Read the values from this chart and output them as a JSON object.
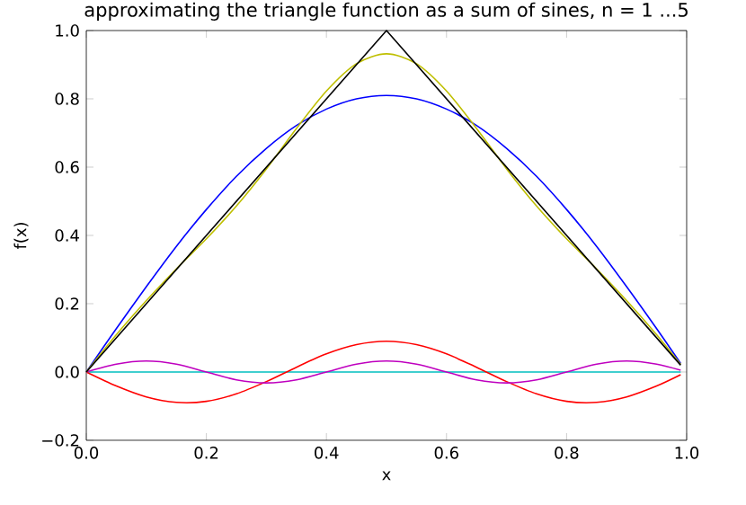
{
  "chart_data": {
    "type": "line",
    "title": "approximating the triangle function as a sum of sines, n = 1 ...5",
    "xlabel": "x",
    "ylabel": "f(x)",
    "x": [
      0,
      0.05,
      0.1,
      0.15,
      0.2,
      0.25,
      0.3,
      0.35,
      0.4,
      0.45,
      0.5,
      0.55,
      0.6,
      0.65,
      0.7,
      0.75,
      0.8,
      0.85,
      0.9,
      0.95,
      0.99
    ],
    "series": [
      {
        "color": "#0000ff",
        "values": [
          0,
          0.127,
          0.25,
          0.368,
          0.476,
          0.573,
          0.655,
          0.722,
          0.77,
          0.8,
          0.81,
          0.8,
          0.77,
          0.722,
          0.655,
          0.573,
          0.476,
          0.368,
          0.25,
          0.127,
          0.025
        ]
      },
      {
        "color": "#00bfbf",
        "values": [
          0,
          0,
          0,
          0,
          0,
          0,
          0,
          0,
          0,
          0,
          0,
          0,
          0,
          0,
          0,
          0,
          0,
          0,
          0,
          0,
          0
        ]
      },
      {
        "color": "#ff0000",
        "values": [
          0,
          -0.041,
          -0.073,
          -0.089,
          -0.086,
          -0.064,
          -0.028,
          0.014,
          0.053,
          0.08,
          0.09,
          0.08,
          0.053,
          0.014,
          -0.028,
          -0.064,
          -0.086,
          -0.089,
          -0.073,
          -0.041,
          -0.008
        ]
      },
      {
        "color": "#bf00bf",
        "values": [
          0,
          0.023,
          0.032,
          0.023,
          0,
          -0.023,
          -0.032,
          -0.023,
          0,
          0.023,
          0.032,
          0.023,
          0,
          -0.023,
          -0.032,
          -0.023,
          0,
          0.023,
          0.032,
          0.023,
          0.005
        ]
      },
      {
        "color": "#bfbf00",
        "values": [
          0,
          0.109,
          0.209,
          0.302,
          0.39,
          0.486,
          0.595,
          0.713,
          0.823,
          0.903,
          0.932,
          0.903,
          0.823,
          0.713,
          0.595,
          0.486,
          0.39,
          0.302,
          0.209,
          0.109,
          0.022
        ]
      },
      {
        "color": "#000000",
        "x": [
          0,
          0.5,
          0.99
        ],
        "values": [
          0,
          1,
          0.02
        ]
      }
    ],
    "xlim": [
      0,
      1
    ],
    "ylim": [
      -0.2,
      1
    ],
    "xticks": [
      {
        "value": 0,
        "label": "0.0"
      },
      0.2,
      0.4,
      0.6,
      0.8,
      {
        "value": 1,
        "label": "1.0"
      }
    ],
    "yticks": [
      {
        "value": -0.2,
        "label": "−0.2"
      },
      {
        "value": 0,
        "label": "0.0"
      },
      0.2,
      0.4,
      0.6,
      0.8,
      {
        "value": 1,
        "label": "1.0"
      }
    ],
    "grid": false,
    "marker": "none",
    "line_style": "solid"
  }
}
